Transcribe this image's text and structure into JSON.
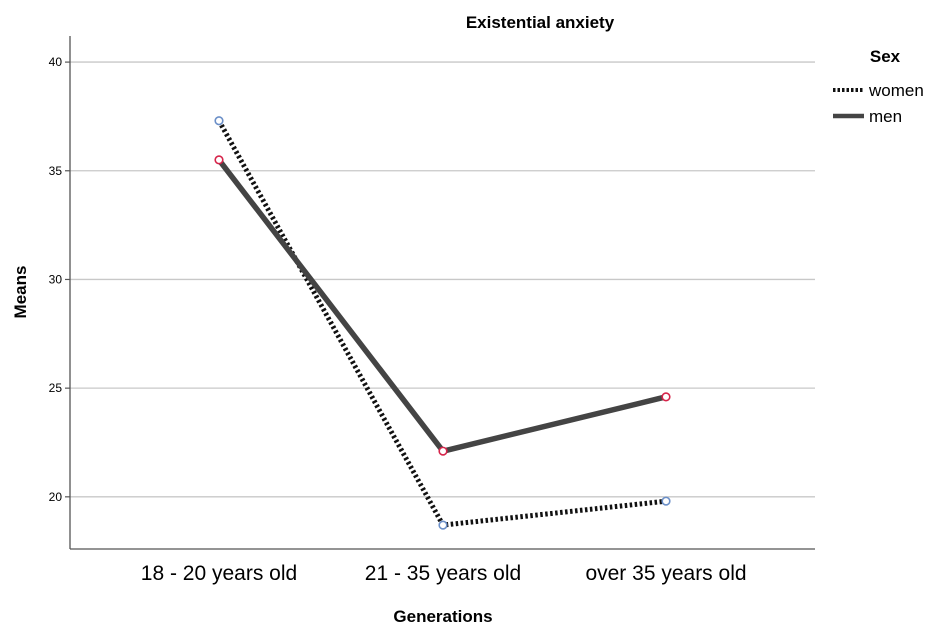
{
  "chart_data": {
    "type": "line",
    "title": "Existential anxiety",
    "xlabel": "Generations",
    "ylabel": "Means",
    "categories": [
      "18 - 20 years old",
      "21 - 35 years old",
      "over 35 years old"
    ],
    "ylim": [
      17.6,
      41.2
    ],
    "yticks": [
      20,
      25,
      30,
      35,
      40
    ],
    "grid": "horizontal",
    "legend": {
      "title": "Sex",
      "placement": "right"
    },
    "series": [
      {
        "name": "women",
        "values": [
          37.3,
          18.7,
          19.8
        ],
        "line_style": "dotted",
        "line_color": "#111111",
        "marker_color": "#6b8fc8"
      },
      {
        "name": "men",
        "values": [
          35.5,
          22.1,
          24.6
        ],
        "line_style": "solid",
        "line_color": "#444444",
        "marker_color": "#d6244a"
      }
    ]
  }
}
